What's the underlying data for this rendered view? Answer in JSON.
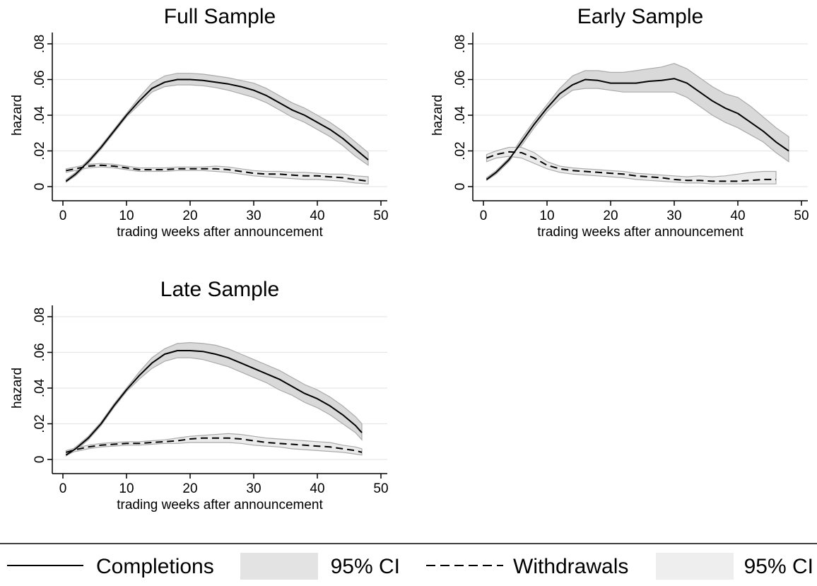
{
  "chart_data": [
    {
      "type": "line",
      "title": "Full Sample",
      "xlabel": "trading weeks after announcement",
      "ylabel": "hazard",
      "xlim": [
        0,
        50
      ],
      "ylim": [
        0,
        0.08
      ],
      "x_ticks": [
        "0",
        "10",
        "20",
        "30",
        "40",
        "50"
      ],
      "y_ticks": [
        "0",
        ".02",
        ".04",
        ".06",
        ".08"
      ],
      "grid": true,
      "series": [
        {
          "name": "Completions",
          "style": "solid",
          "x": [
            0.5,
            2,
            4,
            6,
            8,
            10,
            12,
            14,
            16,
            18,
            20,
            22,
            24,
            26,
            28,
            30,
            32,
            34,
            36,
            38,
            40,
            42,
            44,
            46,
            48
          ],
          "y": [
            0.003,
            0.007,
            0.014,
            0.022,
            0.031,
            0.04,
            0.048,
            0.055,
            0.0585,
            0.06,
            0.06,
            0.0595,
            0.0585,
            0.0575,
            0.056,
            0.054,
            0.051,
            0.047,
            0.043,
            0.04,
            0.036,
            0.032,
            0.027,
            0.021,
            0.015
          ],
          "ci_low": [
            0.0025,
            0.006,
            0.013,
            0.021,
            0.03,
            0.039,
            0.046,
            0.053,
            0.056,
            0.057,
            0.057,
            0.0565,
            0.0555,
            0.054,
            0.052,
            0.05,
            0.047,
            0.043,
            0.039,
            0.036,
            0.032,
            0.028,
            0.023,
            0.017,
            0.012
          ],
          "ci_high": [
            0.004,
            0.008,
            0.015,
            0.023,
            0.032,
            0.041,
            0.05,
            0.058,
            0.062,
            0.0635,
            0.0635,
            0.063,
            0.062,
            0.061,
            0.0595,
            0.058,
            0.055,
            0.051,
            0.047,
            0.044,
            0.04,
            0.036,
            0.031,
            0.025,
            0.019
          ]
        },
        {
          "name": "Withdrawals",
          "style": "dashed",
          "x": [
            0.5,
            2,
            4,
            6,
            8,
            10,
            12,
            14,
            16,
            18,
            20,
            22,
            24,
            26,
            28,
            30,
            32,
            34,
            36,
            38,
            40,
            42,
            44,
            46,
            48
          ],
          "y": [
            0.009,
            0.01,
            0.0115,
            0.012,
            0.0115,
            0.0105,
            0.0095,
            0.0095,
            0.0095,
            0.01,
            0.01,
            0.01,
            0.01,
            0.0095,
            0.0085,
            0.0075,
            0.007,
            0.007,
            0.0065,
            0.006,
            0.006,
            0.0055,
            0.005,
            0.004,
            0.003
          ],
          "ci_low": [
            0.008,
            0.009,
            0.0105,
            0.011,
            0.0105,
            0.0095,
            0.0085,
            0.0085,
            0.0085,
            0.009,
            0.009,
            0.009,
            0.0085,
            0.008,
            0.007,
            0.006,
            0.0055,
            0.005,
            0.0045,
            0.004,
            0.004,
            0.0035,
            0.003,
            0.002,
            0.0015
          ],
          "ci_high": [
            0.01,
            0.011,
            0.0125,
            0.013,
            0.0125,
            0.0115,
            0.0105,
            0.0105,
            0.0105,
            0.011,
            0.011,
            0.011,
            0.0115,
            0.011,
            0.01,
            0.009,
            0.0085,
            0.0085,
            0.008,
            0.008,
            0.0075,
            0.007,
            0.007,
            0.006,
            0.0055
          ]
        }
      ]
    },
    {
      "type": "line",
      "title": "Early Sample",
      "xlabel": "trading weeks after announcement",
      "ylabel": "hazard",
      "xlim": [
        0,
        50
      ],
      "ylim": [
        0,
        0.08
      ],
      "x_ticks": [
        "0",
        "10",
        "20",
        "30",
        "40",
        "50"
      ],
      "y_ticks": [
        "0",
        ".02",
        ".04",
        ".06",
        ".08"
      ],
      "grid": true,
      "series": [
        {
          "name": "Completions",
          "style": "solid",
          "x": [
            0.5,
            2,
            4,
            6,
            8,
            10,
            12,
            14,
            16,
            18,
            20,
            22,
            24,
            26,
            28,
            30,
            32,
            34,
            36,
            38,
            40,
            42,
            44,
            46,
            48
          ],
          "y": [
            0.004,
            0.008,
            0.015,
            0.025,
            0.035,
            0.044,
            0.052,
            0.057,
            0.06,
            0.0595,
            0.058,
            0.058,
            0.058,
            0.059,
            0.0595,
            0.0605,
            0.058,
            0.053,
            0.048,
            0.044,
            0.041,
            0.036,
            0.031,
            0.025,
            0.02
          ],
          "ci_low": [
            0.0035,
            0.007,
            0.014,
            0.023,
            0.033,
            0.042,
            0.049,
            0.054,
            0.055,
            0.055,
            0.054,
            0.053,
            0.053,
            0.053,
            0.053,
            0.053,
            0.05,
            0.045,
            0.04,
            0.036,
            0.033,
            0.029,
            0.025,
            0.019,
            0.014
          ],
          "ci_high": [
            0.005,
            0.009,
            0.016,
            0.027,
            0.037,
            0.046,
            0.055,
            0.062,
            0.065,
            0.065,
            0.064,
            0.064,
            0.065,
            0.066,
            0.067,
            0.069,
            0.066,
            0.061,
            0.056,
            0.052,
            0.05,
            0.045,
            0.039,
            0.033,
            0.028
          ]
        },
        {
          "name": "Withdrawals",
          "style": "dashed",
          "x": [
            0.5,
            2,
            4,
            6,
            8,
            10,
            12,
            14,
            16,
            18,
            20,
            22,
            24,
            26,
            28,
            30,
            32,
            34,
            36,
            38,
            40,
            42,
            44,
            46
          ],
          "y": [
            0.016,
            0.018,
            0.0195,
            0.019,
            0.016,
            0.012,
            0.01,
            0.009,
            0.0085,
            0.008,
            0.0075,
            0.007,
            0.006,
            0.0055,
            0.005,
            0.004,
            0.0035,
            0.0035,
            0.003,
            0.003,
            0.003,
            0.0035,
            0.004,
            0.004
          ],
          "ci_low": [
            0.014,
            0.016,
            0.017,
            0.016,
            0.013,
            0.01,
            0.008,
            0.007,
            0.0065,
            0.006,
            0.0055,
            0.005,
            0.004,
            0.0035,
            0.003,
            0.0025,
            0.002,
            0.002,
            0.0015,
            0.0015,
            0.0015,
            0.0015,
            0.0015,
            0.0015
          ],
          "ci_high": [
            0.018,
            0.02,
            0.022,
            0.022,
            0.019,
            0.014,
            0.0115,
            0.0105,
            0.01,
            0.0095,
            0.009,
            0.0085,
            0.0075,
            0.007,
            0.0065,
            0.006,
            0.0055,
            0.006,
            0.0055,
            0.006,
            0.007,
            0.008,
            0.0085,
            0.0085
          ]
        }
      ]
    },
    {
      "type": "line",
      "title": "Late Sample",
      "xlabel": "trading weeks after announcement",
      "ylabel": "hazard",
      "xlim": [
        0,
        50
      ],
      "ylim": [
        0,
        0.08
      ],
      "x_ticks": [
        "0",
        "10",
        "20",
        "30",
        "40",
        "50"
      ],
      "y_ticks": [
        "0",
        ".02",
        ".04",
        ".06",
        ".08"
      ],
      "grid": true,
      "series": [
        {
          "name": "Completions",
          "style": "solid",
          "x": [
            0.5,
            2,
            4,
            6,
            8,
            10,
            12,
            14,
            16,
            18,
            20,
            22,
            24,
            26,
            28,
            30,
            32,
            34,
            36,
            38,
            40,
            42,
            44,
            46,
            47
          ],
          "y": [
            0.0025,
            0.006,
            0.012,
            0.02,
            0.03,
            0.039,
            0.047,
            0.054,
            0.059,
            0.061,
            0.061,
            0.0605,
            0.059,
            0.057,
            0.054,
            0.051,
            0.048,
            0.045,
            0.041,
            0.037,
            0.034,
            0.03,
            0.025,
            0.019,
            0.015
          ],
          "ci_low": [
            0.002,
            0.005,
            0.011,
            0.019,
            0.029,
            0.038,
            0.045,
            0.051,
            0.055,
            0.057,
            0.057,
            0.056,
            0.054,
            0.052,
            0.049,
            0.046,
            0.043,
            0.039,
            0.036,
            0.032,
            0.029,
            0.025,
            0.02,
            0.015,
            0.011
          ],
          "ci_high": [
            0.003,
            0.007,
            0.013,
            0.021,
            0.031,
            0.04,
            0.049,
            0.057,
            0.062,
            0.065,
            0.0655,
            0.065,
            0.064,
            0.062,
            0.059,
            0.056,
            0.053,
            0.05,
            0.046,
            0.042,
            0.039,
            0.035,
            0.03,
            0.024,
            0.02
          ]
        },
        {
          "name": "Withdrawals",
          "style": "dashed",
          "x": [
            0.5,
            2,
            4,
            6,
            8,
            10,
            12,
            14,
            16,
            18,
            20,
            22,
            24,
            26,
            28,
            30,
            32,
            34,
            36,
            38,
            40,
            42,
            44,
            46,
            47
          ],
          "y": [
            0.004,
            0.0055,
            0.007,
            0.008,
            0.0085,
            0.009,
            0.009,
            0.0095,
            0.01,
            0.0105,
            0.0115,
            0.012,
            0.012,
            0.012,
            0.0115,
            0.0105,
            0.0095,
            0.009,
            0.0085,
            0.008,
            0.0075,
            0.007,
            0.006,
            0.005,
            0.004
          ],
          "ci_low": [
            0.003,
            0.0045,
            0.006,
            0.007,
            0.0075,
            0.008,
            0.008,
            0.0085,
            0.009,
            0.009,
            0.0095,
            0.0095,
            0.0095,
            0.0095,
            0.009,
            0.008,
            0.0075,
            0.007,
            0.006,
            0.0055,
            0.005,
            0.0045,
            0.004,
            0.003,
            0.0025
          ],
          "ci_high": [
            0.005,
            0.0065,
            0.008,
            0.009,
            0.0095,
            0.01,
            0.01,
            0.0105,
            0.011,
            0.012,
            0.013,
            0.0135,
            0.014,
            0.0145,
            0.014,
            0.013,
            0.012,
            0.0115,
            0.011,
            0.0105,
            0.01,
            0.0095,
            0.008,
            0.007,
            0.006
          ]
        }
      ]
    }
  ],
  "legend": {
    "placement": "bottom",
    "items": [
      {
        "label": "Completions",
        "kind": "line-solid"
      },
      {
        "label": "95% CI",
        "kind": "band",
        "color": "#e3e3e3"
      },
      {
        "label": "Withdrawals",
        "kind": "line-dashed"
      },
      {
        "label": "95% CI",
        "kind": "band",
        "color": "#eeeeee"
      }
    ]
  },
  "colors": {
    "completion_line": "#000000",
    "withdrawal_line": "#000000",
    "completion_band": "#d9d9d9",
    "withdrawal_band": "#ebebeb",
    "band_edge": "#aaaaaa",
    "grid": "#e6e6e6"
  }
}
